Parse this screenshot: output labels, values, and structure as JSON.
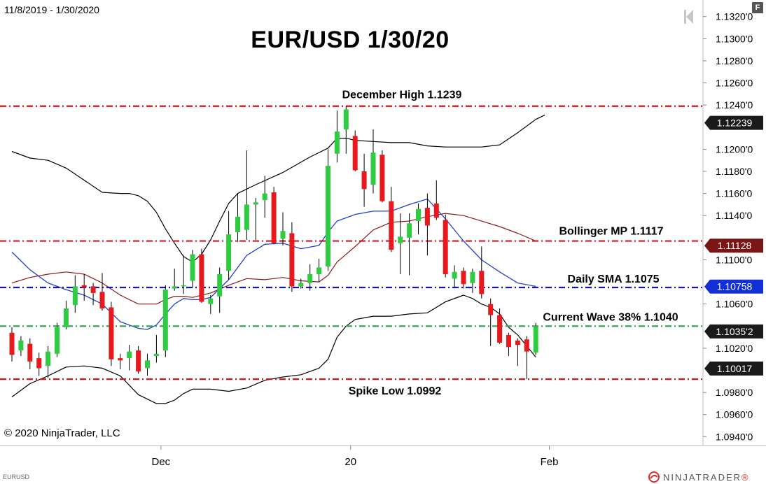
{
  "header": {
    "date_range": "11/8/2019 - 1/30/2020",
    "f_button": "F",
    "title": "EUR/USD 1/30/20"
  },
  "footer": {
    "copyright": "© 2020 NinjaTrader, LLC",
    "instrument": "EURUSD",
    "logo_text": "NINJATRADER",
    "logo_mark": "®"
  },
  "colors": {
    "up": "#2ecc40",
    "down": "#e8191c",
    "red_line": "#d4141a",
    "blue_line": "#1616a0",
    "green_line": "#27a845",
    "bollinger": "#000000",
    "sma": "#2241c9",
    "mp": "#8b1a1a",
    "label_dark": "#1a1a1a",
    "label_mp": "#7b1414",
    "label_sma": "#1330d8"
  },
  "chart_data": {
    "type": "candlestick",
    "instrument": "EURUSD",
    "ylim": [
      1.0932,
      1.1335
    ],
    "y_ticks": [
      "1.1320'0",
      "1.1300'0",
      "1.1280'0",
      "1.1260'0",
      "1.1240'0",
      "1.1200'0",
      "1.1180'0",
      "1.1160'0",
      "1.1140'0",
      "1.1100'0",
      "1.1060'0",
      "1.1020'0",
      "1.0980'0",
      "1.0960'0",
      "1.0940'0"
    ],
    "y_tick_values": [
      1.132,
      1.13,
      1.128,
      1.126,
      1.124,
      1.12,
      1.118,
      1.116,
      1.114,
      1.11,
      1.106,
      1.102,
      1.098,
      1.096,
      1.094
    ],
    "x_labels": [
      {
        "label": "Dec",
        "bar": 16.5
      },
      {
        "label": "20",
        "bar": 37.5
      },
      {
        "label": "Feb",
        "bar": 59.5
      }
    ],
    "candles": [
      [
        1.1034,
        1.1039,
        1.1008,
        1.1014
      ],
      [
        1.1018,
        1.1031,
        1.1013,
        1.1027
      ],
      [
        1.1024,
        1.1029,
        1.1001,
        1.1008
      ],
      [
        1.1011,
        1.1016,
        1.0995,
        1.1002
      ],
      [
        1.1004,
        1.1022,
        1.0993,
        1.1017
      ],
      [
        1.1015,
        1.1043,
        1.1012,
        1.1039
      ],
      [
        1.1039,
        1.1063,
        1.1037,
        1.1056
      ],
      [
        1.1059,
        1.1086,
        1.1052,
        1.1076
      ],
      [
        1.1077,
        1.1087,
        1.1063,
        1.1075
      ],
      [
        1.1076,
        1.1079,
        1.1059,
        1.107
      ],
      [
        1.1071,
        1.1088,
        1.1054,
        1.1056
      ],
      [
        1.1057,
        1.1062,
        1.1004,
        1.101
      ],
      [
        1.1011,
        1.1015,
        1.1001,
        1.1009
      ],
      [
        1.1011,
        1.1023,
        1.1,
        1.1017
      ],
      [
        1.1018,
        1.1022,
        1.0997,
        1.0999
      ],
      [
        1.1002,
        1.1015,
        1.0995,
        1.1009
      ],
      [
        1.1013,
        1.1032,
        1.1007,
        1.1015
      ],
      [
        1.1018,
        1.1077,
        1.1012,
        1.1073
      ],
      [
        1.1074,
        1.1092,
        1.1072,
        1.1076
      ],
      [
        1.1076,
        1.1104,
        1.1069,
        1.1077
      ],
      [
        1.1081,
        1.1109,
        1.1075,
        1.1105
      ],
      [
        1.1105,
        1.111,
        1.1061,
        1.1062
      ],
      [
        1.106,
        1.1068,
        1.1051,
        1.1065
      ],
      [
        1.1067,
        1.1093,
        1.1052,
        1.1087
      ],
      [
        1.109,
        1.1144,
        1.1082,
        1.1123
      ],
      [
        1.1125,
        1.116,
        1.1116,
        1.1139
      ],
      [
        1.1127,
        1.1199,
        1.1118,
        1.115
      ],
      [
        1.115,
        1.1156,
        1.1118,
        1.1152
      ],
      [
        1.1154,
        1.1176,
        1.1138,
        1.116
      ],
      [
        1.1161,
        1.1166,
        1.1114,
        1.1115
      ],
      [
        1.1119,
        1.1143,
        1.1113,
        1.1126
      ],
      [
        1.1124,
        1.1134,
        1.1071,
        1.1076
      ],
      [
        1.1076,
        1.1083,
        1.1074,
        1.1079
      ],
      [
        1.1079,
        1.1096,
        1.1072,
        1.1087
      ],
      [
        1.1087,
        1.1101,
        1.108,
        1.1093
      ],
      [
        1.1094,
        1.12,
        1.109,
        1.1185
      ],
      [
        1.1196,
        1.1235,
        1.1188,
        1.1216
      ],
      [
        1.1218,
        1.1239,
        1.1196,
        1.1236
      ],
      [
        1.1212,
        1.1217,
        1.118,
        1.1181
      ],
      [
        1.118,
        1.1196,
        1.1148,
        1.1164
      ],
      [
        1.1168,
        1.1218,
        1.116,
        1.1197
      ],
      [
        1.1195,
        1.1199,
        1.1152,
        1.1153
      ],
      [
        1.1153,
        1.1166,
        1.1107,
        1.1109
      ],
      [
        1.1115,
        1.1142,
        1.1087,
        1.1121
      ],
      [
        1.112,
        1.1142,
        1.1086,
        1.1133
      ],
      [
        1.1135,
        1.1151,
        1.1123,
        1.1146
      ],
      [
        1.1147,
        1.116,
        1.1104,
        1.1131
      ],
      [
        1.1151,
        1.1172,
        1.1136,
        1.1138
      ],
      [
        1.1136,
        1.1141,
        1.1084,
        1.1087
      ],
      [
        1.1083,
        1.1095,
        1.1075,
        1.1089
      ],
      [
        1.109,
        1.1093,
        1.1074,
        1.1078
      ],
      [
        1.1079,
        1.1092,
        1.107,
        1.1089
      ],
      [
        1.109,
        1.1112,
        1.1065,
        1.1069
      ],
      [
        1.106,
        1.1065,
        1.1022,
        1.105
      ],
      [
        1.105,
        1.1056,
        1.1024,
        1.1025
      ],
      [
        1.1032,
        1.1034,
        1.1013,
        1.1021
      ],
      [
        1.1027,
        1.1029,
        1.1004,
        1.1023
      ],
      [
        1.1028,
        1.1031,
        1.0992,
        1.1017
      ],
      [
        1.1016,
        1.1043,
        1.1014,
        1.104
      ]
    ],
    "bollinger_upper": {
      "x": [
        0,
        2,
        4,
        6,
        8,
        10,
        12,
        13,
        14,
        15,
        16,
        17,
        18,
        19,
        20,
        21,
        22,
        23,
        24,
        25,
        27,
        30,
        33,
        35,
        36,
        37,
        38,
        40,
        42,
        44,
        46,
        48,
        50,
        52,
        54,
        56,
        58,
        59
      ],
      "y": [
        1.1198,
        1.1192,
        1.119,
        1.1183,
        1.1172,
        1.1161,
        1.116,
        1.116,
        1.1158,
        1.1153,
        1.1143,
        1.1128,
        1.1115,
        1.1103,
        1.1098,
        1.1105,
        1.1118,
        1.1135,
        1.1151,
        1.116,
        1.1168,
        1.1179,
        1.1193,
        1.1201,
        1.121,
        1.121,
        1.1208,
        1.1207,
        1.1206,
        1.1206,
        1.1203,
        1.1202,
        1.1202,
        1.1202,
        1.1204,
        1.1215,
        1.1227,
        1.1231
      ]
    },
    "bollinger_lower": {
      "x": [
        0,
        2,
        4,
        6,
        8,
        10,
        12,
        14,
        16,
        17,
        18,
        19,
        20,
        22,
        24,
        26,
        28,
        30,
        32,
        34,
        35,
        36,
        37,
        38,
        40,
        42,
        44,
        46,
        48,
        50,
        51,
        52,
        53,
        54,
        55,
        56,
        57,
        58
      ],
      "y": [
        1.0976,
        1.0988,
        1.0995,
        1.1003,
        1.1004,
        1.1002,
        1.0995,
        1.0978,
        1.097,
        1.097,
        1.0973,
        1.0979,
        1.0983,
        1.0983,
        1.0981,
        1.0984,
        1.0991,
        1.0994,
        1.0996,
        1.1002,
        1.101,
        1.103,
        1.104,
        1.1046,
        1.1049,
        1.1049,
        1.1051,
        1.1052,
        1.1062,
        1.1068,
        1.1065,
        1.106,
        1.1057,
        1.1051,
        1.1039,
        1.1032,
        1.1022,
        1.1012
      ]
    },
    "sma": {
      "x": [
        0,
        2,
        4,
        6,
        8,
        10,
        12,
        14,
        15,
        16,
        17,
        18,
        19,
        20,
        21,
        22,
        24,
        26,
        28,
        30,
        32,
        34,
        35,
        36,
        38,
        40,
        42,
        44,
        46,
        48,
        50,
        52,
        54,
        56,
        58
      ],
      "y": [
        1.1107,
        1.1091,
        1.1079,
        1.1073,
        1.1068,
        1.106,
        1.1044,
        1.1038,
        1.1037,
        1.1041,
        1.1051,
        1.106,
        1.1065,
        1.1064,
        1.1064,
        1.1066,
        1.1082,
        1.1104,
        1.1114,
        1.1115,
        1.111,
        1.1113,
        1.1125,
        1.1135,
        1.1141,
        1.1144,
        1.1144,
        1.115,
        1.1155,
        1.1137,
        1.1117,
        1.11,
        1.1089,
        1.1079,
        1.1076
      ]
    },
    "mp": {
      "x": [
        0,
        2,
        4,
        6,
        8,
        10,
        12,
        14,
        16,
        17,
        18,
        19,
        20,
        22,
        24,
        26,
        28,
        30,
        32,
        34,
        35,
        36,
        38,
        40,
        42,
        44,
        46,
        48,
        50,
        52,
        54,
        56,
        58
      ],
      "y": [
        1.1079,
        1.1084,
        1.1087,
        1.1089,
        1.1087,
        1.1079,
        1.1068,
        1.106,
        1.106,
        1.1064,
        1.1067,
        1.1067,
        1.1066,
        1.107,
        1.1077,
        1.1083,
        1.1082,
        1.1084,
        1.1081,
        1.108,
        1.1086,
        1.1098,
        1.1112,
        1.1127,
        1.1134,
        1.1135,
        1.1139,
        1.1142,
        1.114,
        1.1135,
        1.113,
        1.1124,
        1.1117
      ]
    },
    "horizontal_lines": [
      {
        "name": "december-high",
        "value": 1.1239,
        "color": "#d4141a",
        "label": "December High 1.1239",
        "badge": "1.12239",
        "badge_bg": "#1a1a1a"
      },
      {
        "name": "bollinger-mp",
        "value": 1.1117,
        "color": "#d4141a",
        "label": "Bollinger MP 1.1117",
        "badge": "1.11128",
        "badge_bg": "#7b1414"
      },
      {
        "name": "daily-sma",
        "value": 1.1075,
        "color": "#1616a0",
        "label": "Daily SMA 1.1075",
        "badge": "1.10758",
        "badge_bg": "#1330d8"
      },
      {
        "name": "current-wave",
        "value": 1.104,
        "color": "#27a845",
        "label": "Current Wave 38% 1.1040",
        "badge": "1.1035'2",
        "badge_bg": "#1a1a1a"
      },
      {
        "name": "spike-low",
        "value": 1.0992,
        "color": "#d4141a",
        "label": "Spike Low 1.0992",
        "badge": "1.10017",
        "badge_bg": "#1a1a1a"
      }
    ]
  }
}
